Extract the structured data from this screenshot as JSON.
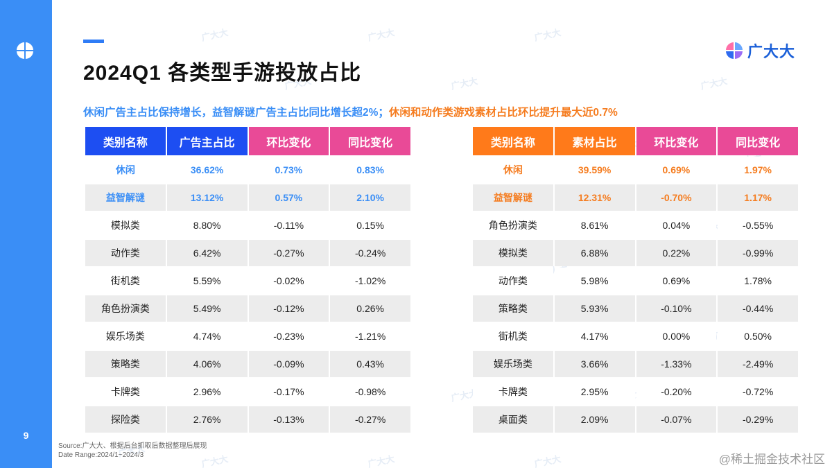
{
  "page": {
    "number": "9",
    "title": "2024Q1 各类型手游投放占比",
    "subtitle_blue": "休闲广告主占比保持增长，益智解谜广告主占比同比增长超2%；",
    "subtitle_orange": "休闲和动作类游戏素材占比环比提升最大近0.7%",
    "brand": "广大大",
    "source_line1": "Source:广大大、根据后台抓取后数据整理后展现",
    "source_line2": "Date Range:2024/1~2024/3",
    "watermark": "@稀土掘金技术社区",
    "bg_watermark": "广大大"
  },
  "colors": {
    "sidebar": "#3a8ef6",
    "header_blue": "#1d4ef2",
    "header_orange": "#ff7a1a",
    "header_pink": "#e94a97",
    "highlight_blue": "#3a8ef6",
    "highlight_orange": "#f57c1f"
  },
  "left_table": {
    "headers": [
      "类别名称",
      "广告主占比",
      "环比变化",
      "同比变化"
    ],
    "rows": [
      [
        "休闲",
        "36.62%",
        "0.73%",
        "0.83%"
      ],
      [
        "益智解谜",
        "13.12%",
        "0.57%",
        "2.10%"
      ],
      [
        "模拟类",
        "8.80%",
        "-0.11%",
        "0.15%"
      ],
      [
        "动作类",
        "6.42%",
        "-0.27%",
        "-0.24%"
      ],
      [
        "街机类",
        "5.59%",
        "-0.02%",
        "-1.02%"
      ],
      [
        "角色扮演类",
        "5.49%",
        "-0.12%",
        "0.26%"
      ],
      [
        "娱乐场类",
        "4.74%",
        "-0.23%",
        "-1.21%"
      ],
      [
        "策略类",
        "4.06%",
        "-0.09%",
        "0.43%"
      ],
      [
        "卡牌类",
        "2.96%",
        "-0.17%",
        "-0.98%"
      ],
      [
        "探险类",
        "2.76%",
        "-0.13%",
        "-0.27%"
      ]
    ]
  },
  "right_table": {
    "headers": [
      "类别名称",
      "素材占比",
      "环比变化",
      "同比变化"
    ],
    "rows": [
      [
        "休闲",
        "39.59%",
        "0.69%",
        "1.97%"
      ],
      [
        "益智解谜",
        "12.31%",
        "-0.70%",
        "1.17%"
      ],
      [
        "角色扮演类",
        "8.61%",
        "0.04%",
        "-0.55%"
      ],
      [
        "模拟类",
        "6.88%",
        "0.22%",
        "-0.99%"
      ],
      [
        "动作类",
        "5.98%",
        "0.69%",
        "1.78%"
      ],
      [
        "策略类",
        "5.93%",
        "-0.10%",
        "-0.44%"
      ],
      [
        "街机类",
        "4.17%",
        "0.00%",
        "0.50%"
      ],
      [
        "娱乐场类",
        "3.66%",
        "-1.33%",
        "-2.49%"
      ],
      [
        "卡牌类",
        "2.95%",
        "-0.20%",
        "-0.72%"
      ],
      [
        "桌面类",
        "2.09%",
        "-0.07%",
        "-0.29%"
      ]
    ]
  }
}
